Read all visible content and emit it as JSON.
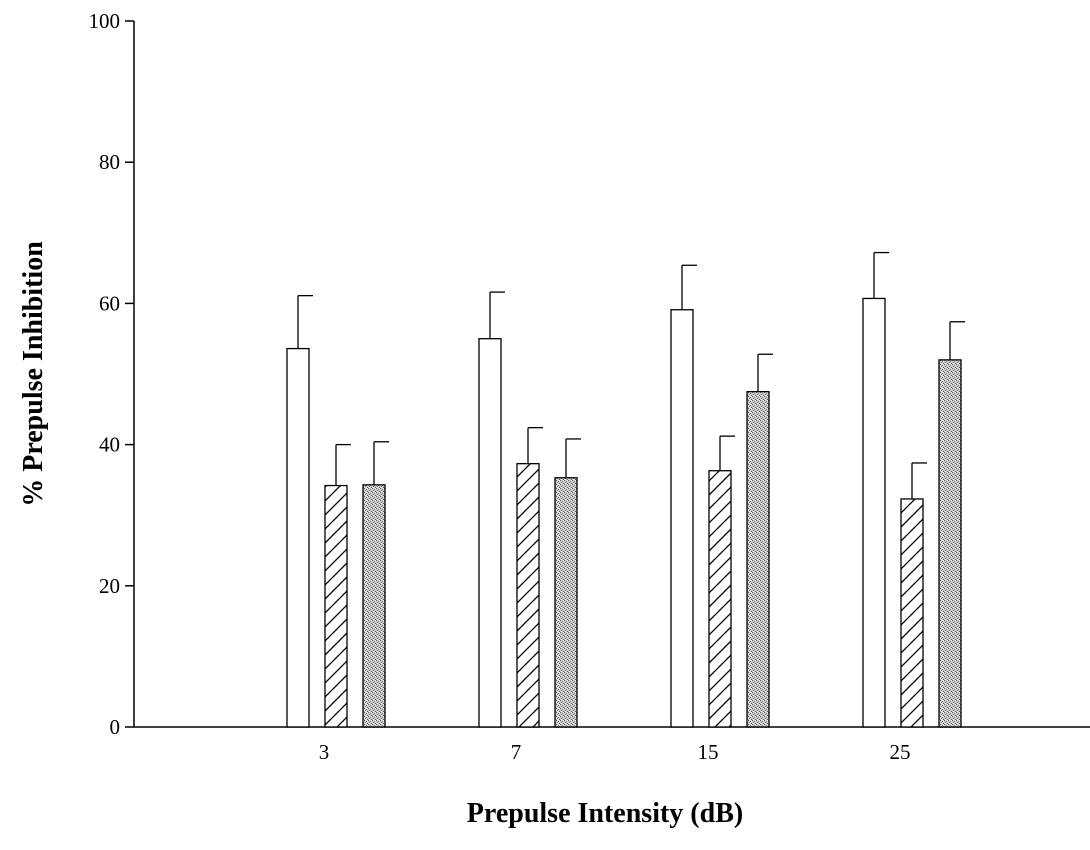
{
  "chart_data": {
    "type": "bar",
    "title": "",
    "xlabel": "Prepulse Intensity (dB)",
    "ylabel": "% Prepulse Inhibition",
    "categories": [
      "3",
      "7",
      "15",
      "25"
    ],
    "ylim": [
      0,
      100
    ],
    "yticks": [
      "0",
      "20",
      "40",
      "60",
      "80",
      "100"
    ],
    "grid": false,
    "legend": "none",
    "series": [
      {
        "fill": "open",
        "color": "#ffffff",
        "values": [
          53.6,
          55.0,
          59.1,
          60.7
        ],
        "errors": [
          7.5,
          6.6,
          6.3,
          6.5
        ]
      },
      {
        "fill": "hatched",
        "color": "#ffffff",
        "values": [
          34.2,
          37.3,
          36.3,
          32.3
        ],
        "errors": [
          5.8,
          5.1,
          4.9,
          5.1
        ]
      },
      {
        "fill": "stippled",
        "color": "#c8c8c8",
        "values": [
          34.3,
          35.3,
          47.5,
          52.0
        ],
        "errors": [
          6.1,
          5.5,
          5.3,
          5.4
        ]
      }
    ]
  }
}
